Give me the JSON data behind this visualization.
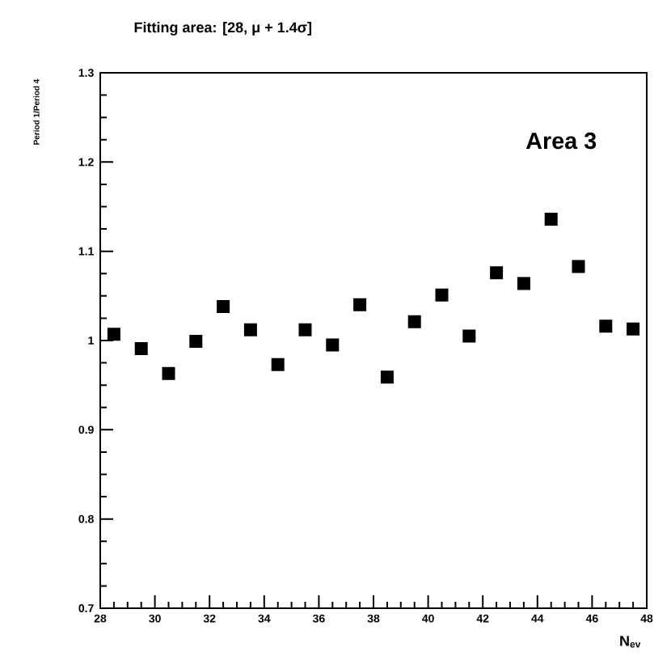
{
  "chart_data": {
    "type": "scatter",
    "title": "Fitting area: [28, μ + 1.4σ]",
    "xlabel": "N$_{ev}$",
    "ylabel": "Period 1/Period 4",
    "annotations": [
      "Area 3"
    ],
    "x": [
      28.5,
      29.5,
      30.5,
      31.5,
      32.5,
      33.5,
      34.5,
      35.5,
      36.5,
      37.5,
      38.5,
      39.5,
      40.5,
      41.5,
      42.5,
      43.5,
      44.5,
      45.5,
      46.5,
      47.5
    ],
    "values": [
      1.007,
      0.991,
      0.963,
      0.999,
      1.038,
      1.012,
      0.973,
      1.012,
      0.995,
      1.04,
      0.959,
      1.021,
      1.051,
      1.005,
      1.076,
      1.064,
      1.136,
      1.083,
      1.016,
      1.013
    ],
    "color": "#000000",
    "marker": "square",
    "xlim": [
      28,
      48
    ],
    "ylim": [
      0.7,
      1.3
    ],
    "xticks": [
      28,
      30,
      32,
      34,
      36,
      38,
      40,
      42,
      44,
      46,
      48
    ],
    "yticks": [
      0.7,
      0.8,
      0.9,
      1,
      1.1,
      1.2,
      1.3
    ],
    "grid": false
  }
}
